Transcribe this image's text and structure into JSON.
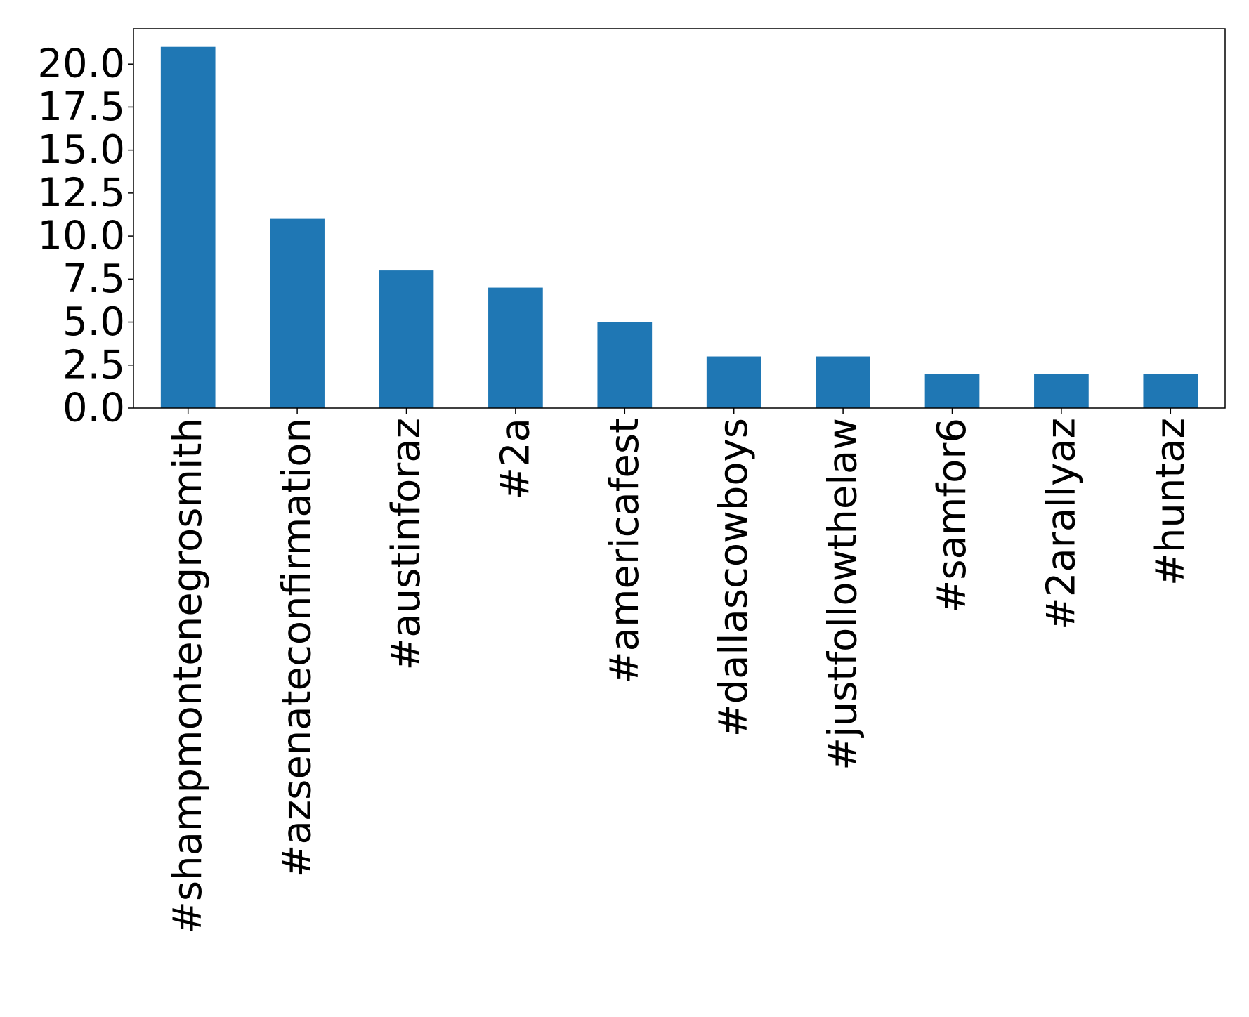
{
  "chart_data": {
    "type": "bar",
    "title": "",
    "xlabel": "",
    "ylabel": "",
    "categories": [
      "#shampmontenegrosmith",
      "#azsenateconfirmation",
      "#austinforaz",
      "#2a",
      "#americafest",
      "#dallascowboys",
      "#justfollowthelaw",
      "#samfor6",
      "#2arallyaz",
      "#huntaz"
    ],
    "values": [
      21,
      11,
      8,
      7,
      5,
      3,
      3,
      2,
      2,
      2
    ],
    "ylim": [
      0,
      22.05
    ],
    "yticks": [
      0,
      2.5,
      5,
      7.5,
      10,
      12.5,
      15,
      17.5,
      20
    ],
    "ytick_labels": [
      "0.0",
      "2.5",
      "5.0",
      "7.5",
      "10.0",
      "12.5",
      "15.0",
      "17.5",
      "20.0"
    ],
    "grid": false,
    "legend": "none",
    "bar_color": "#1f77b4"
  }
}
